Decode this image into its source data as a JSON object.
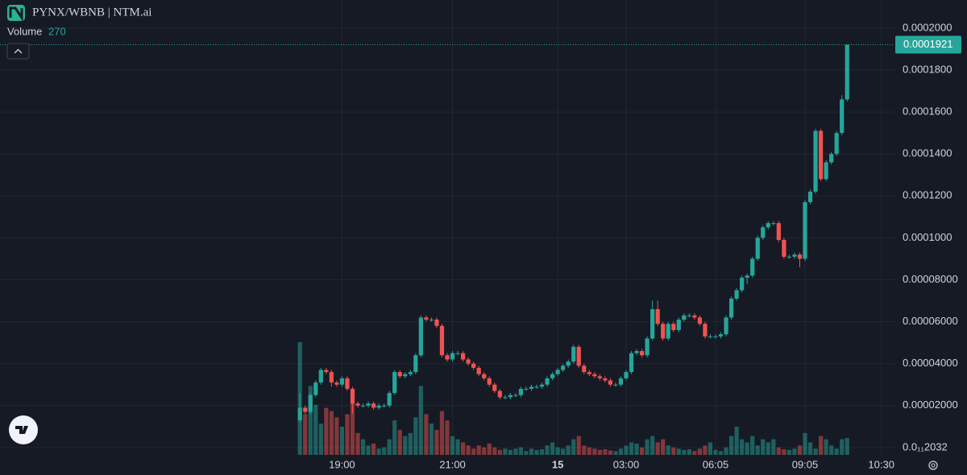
{
  "header": {
    "title": "PYNX/WBNB | NTM.ai",
    "volume_label": "Volume"
  },
  "chart_data": {
    "type": "candlestick",
    "series": [
      {
        "name": "PYNX/WBNB",
        "up_color": "#26a69a",
        "down_color": "#ef5350",
        "open": [
          1.3e-05,
          1.9e-05,
          1.7e-05,
          2.5e-05,
          3.1e-05,
          3.7e-05,
          3.6e-05,
          3.1e-05,
          3e-05,
          3.3e-05,
          2.8e-05,
          2.1e-05,
          2e-05,
          2e-05,
          2.1e-05,
          1.9e-05,
          2e-05,
          2e-05,
          2.6e-05,
          3.6e-05,
          3.4e-05,
          3.5e-05,
          3.6e-05,
          4.4e-05,
          6.2e-05,
          6.1e-05,
          6.1e-05,
          5.8e-05,
          4.4e-05,
          4.2e-05,
          4.5e-05,
          4.5e-05,
          4.2e-05,
          4e-05,
          3.8e-05,
          3.5e-05,
          3.3e-05,
          3e-05,
          2.7e-05,
          2.4e-05,
          2.4e-05,
          2.5e-05,
          2.5e-05,
          2.8e-05,
          2.8e-05,
          2.9e-05,
          2.9e-05,
          3e-05,
          3.3e-05,
          3.5e-05,
          3.7e-05,
          3.9e-05,
          4.1e-05,
          4.8e-05,
          3.9e-05,
          3.6e-05,
          3.5e-05,
          3.4e-05,
          3.3e-05,
          3.2e-05,
          3e-05,
          3e-05,
          3.3e-05,
          3.6e-05,
          4.5e-05,
          4.6e-05,
          4.4e-05,
          5.2e-05,
          6.6e-05,
          5.9e-05,
          5.2e-05,
          5.9e-05,
          5.6e-05,
          6.1e-05,
          6.3e-05,
          6.3e-05,
          6.2e-05,
          5.9e-05,
          5.3e-05,
          5.3e-05,
          5.3e-05,
          5.4e-05,
          6.2e-05,
          7.1e-05,
          7.5e-05,
          8.1e-05,
          8.2e-05,
          9e-05,
          0.0001,
          0.000105,
          0.000107,
          0.000107,
          9.9e-05,
          9.1e-05,
          9.1e-05,
          9.2e-05,
          9e-05,
          0.000117,
          0.000122,
          0.000151,
          0.000128,
          0.000136,
          0.00014,
          0.00015,
          0.000166
        ],
        "high": [
          2.6e-05,
          2e-05,
          2.6e-05,
          3.2e-05,
          3.8e-05,
          3.8e-05,
          3.7e-05,
          3.2e-05,
          3.4e-05,
          3.4e-05,
          2.9e-05,
          2.2e-05,
          2.1e-05,
          2.2e-05,
          2.2e-05,
          2.1e-05,
          2.1e-05,
          2.7e-05,
          3.7e-05,
          3.7e-05,
          3.6e-05,
          3.7e-05,
          4.5e-05,
          6.3e-05,
          6.3e-05,
          6.2e-05,
          6.2e-05,
          5.9e-05,
          4.5e-05,
          4.6e-05,
          4.6e-05,
          4.6e-05,
          4.3e-05,
          4.1e-05,
          3.9e-05,
          3.6e-05,
          3.4e-05,
          3.1e-05,
          2.8e-05,
          2.5e-05,
          2.6e-05,
          2.6e-05,
          2.9e-05,
          2.9e-05,
          3e-05,
          3e-05,
          3.1e-05,
          3.4e-05,
          3.6e-05,
          3.8e-05,
          4e-05,
          4.2e-05,
          4.9e-05,
          4.9e-05,
          4e-05,
          3.7e-05,
          3.6e-05,
          3.5e-05,
          3.4e-05,
          3.3e-05,
          3.1e-05,
          3.4e-05,
          3.7e-05,
          4.6e-05,
          4.7e-05,
          4.7e-05,
          5.3e-05,
          7e-05,
          7e-05,
          6e-05,
          6e-05,
          6e-05,
          6.2e-05,
          6.4e-05,
          6.4e-05,
          6.4e-05,
          6.3e-05,
          6e-05,
          5.4e-05,
          5.4e-05,
          5.5e-05,
          6.3e-05,
          7.2e-05,
          7.6e-05,
          8.2e-05,
          8.3e-05,
          9.1e-05,
          0.000101,
          0.000106,
          0.000108,
          0.000108,
          0.000108,
          0.0001,
          9.2e-05,
          9.3e-05,
          9.3e-05,
          0.000118,
          0.000123,
          0.000152,
          0.000152,
          0.000137,
          0.000141,
          0.000151,
          0.000168,
          0.0001921
        ],
        "low": [
          1.2e-05,
          1.6e-05,
          1.6e-05,
          2.4e-05,
          3e-05,
          3.5e-05,
          2.9e-05,
          2.9e-05,
          2.9e-05,
          2.7e-05,
          1.6e-05,
          1.9e-05,
          1.9e-05,
          1.9e-05,
          1.8e-05,
          1.8e-05,
          1.9e-05,
          1.9e-05,
          2.5e-05,
          3.3e-05,
          3.3e-05,
          3.4e-05,
          3.5e-05,
          4.3e-05,
          6e-05,
          6e-05,
          5.7e-05,
          4.3e-05,
          4.1e-05,
          4.1e-05,
          4.4e-05,
          4.1e-05,
          3.9e-05,
          3.7e-05,
          3.4e-05,
          3.2e-05,
          2.9e-05,
          2.6e-05,
          2.3e-05,
          2.3e-05,
          2.3e-05,
          2.4e-05,
          2.4e-05,
          2.7e-05,
          2.7e-05,
          2.8e-05,
          2.8e-05,
          2.9e-05,
          3.2e-05,
          3.4e-05,
          3.6e-05,
          3.8e-05,
          4e-05,
          3.8e-05,
          3.5e-05,
          3.4e-05,
          3.3e-05,
          3.2e-05,
          3.1e-05,
          2.9e-05,
          2.9e-05,
          2.9e-05,
          3.2e-05,
          3.5e-05,
          4.4e-05,
          4.3e-05,
          4.3e-05,
          5.1e-05,
          5.8e-05,
          5.1e-05,
          5.1e-05,
          5.5e-05,
          5.5e-05,
          6e-05,
          6.2e-05,
          6.1e-05,
          5.8e-05,
          5.2e-05,
          5.2e-05,
          5.2e-05,
          5.2e-05,
          5.3e-05,
          6.1e-05,
          7e-05,
          7.4e-05,
          7.8e-05,
          8.1e-05,
          8.9e-05,
          9.9e-05,
          0.000104,
          0.000106,
          9.8e-05,
          9e-05,
          9e-05,
          9e-05,
          8.6e-05,
          8.9e-05,
          0.000116,
          0.000121,
          0.000127,
          0.000127,
          0.000135,
          0.000139,
          0.000149,
          0.000165
        ],
        "close": [
          1.9e-05,
          1.7e-05,
          2.5e-05,
          3.1e-05,
          3.7e-05,
          3.6e-05,
          3.1e-05,
          3e-05,
          3.3e-05,
          2.8e-05,
          2.1e-05,
          2e-05,
          2e-05,
          2.1e-05,
          1.9e-05,
          2e-05,
          2e-05,
          2.6e-05,
          3.6e-05,
          3.4e-05,
          3.5e-05,
          3.6e-05,
          4.4e-05,
          6.2e-05,
          6.1e-05,
          6.1e-05,
          5.8e-05,
          4.4e-05,
          4.2e-05,
          4.5e-05,
          4.5e-05,
          4.2e-05,
          4e-05,
          3.8e-05,
          3.5e-05,
          3.3e-05,
          3e-05,
          2.7e-05,
          2.4e-05,
          2.4e-05,
          2.5e-05,
          2.5e-05,
          2.8e-05,
          2.8e-05,
          2.9e-05,
          2.9e-05,
          3e-05,
          3.3e-05,
          3.5e-05,
          3.7e-05,
          3.9e-05,
          4.1e-05,
          4.8e-05,
          3.9e-05,
          3.6e-05,
          3.5e-05,
          3.4e-05,
          3.3e-05,
          3.2e-05,
          3e-05,
          3e-05,
          3.3e-05,
          3.6e-05,
          4.5e-05,
          4.6e-05,
          4.4e-05,
          5.2e-05,
          6.6e-05,
          5.9e-05,
          5.2e-05,
          5.9e-05,
          5.6e-05,
          6.1e-05,
          6.3e-05,
          6.3e-05,
          6.2e-05,
          5.9e-05,
          5.3e-05,
          5.3e-05,
          5.3e-05,
          5.4e-05,
          6.2e-05,
          7.1e-05,
          7.5e-05,
          8.1e-05,
          8.2e-05,
          9e-05,
          0.0001,
          0.000105,
          0.000107,
          0.000107,
          9.9e-05,
          9.1e-05,
          9.1e-05,
          9.2e-05,
          9e-05,
          0.000117,
          0.000122,
          0.000151,
          0.000128,
          0.000136,
          0.00014,
          0.00015,
          0.000166,
          0.0001921
        ],
        "volume": [
          1800,
          650,
          1100,
          800,
          500,
          750,
          700,
          600,
          450,
          650,
          900,
          350,
          250,
          150,
          180,
          100,
          120,
          250,
          550,
          400,
          300,
          350,
          600,
          1100,
          650,
          500,
          400,
          700,
          550,
          300,
          250,
          200,
          150,
          100,
          150,
          120,
          180,
          120,
          80,
          100,
          80,
          100,
          120,
          60,
          100,
          80,
          90,
          150,
          200,
          120,
          100,
          150,
          250,
          300,
          150,
          120,
          100,
          80,
          90,
          70,
          60,
          100,
          150,
          200,
          180,
          120,
          250,
          300,
          200,
          250,
          150,
          120,
          100,
          80,
          90,
          60,
          100,
          150,
          200,
          80,
          60,
          120,
          300,
          450,
          250,
          200,
          300,
          150,
          250,
          200,
          250,
          120,
          90,
          80,
          100,
          150,
          350,
          200,
          100,
          300,
          250,
          150,
          100,
          250,
          270
        ]
      }
    ],
    "ylim": [
      -3.5e-06,
      0.0002134
    ],
    "yticks": [
      {
        "value": 0.0002,
        "label": "0.0002000"
      },
      {
        "value": 0.00018,
        "label": "0.0001800"
      },
      {
        "value": 0.00016,
        "label": "0.0001600"
      },
      {
        "value": 0.00014,
        "label": "0.0001400"
      },
      {
        "value": 0.00012,
        "label": "0.0001200"
      },
      {
        "value": 0.0001,
        "label": "0.0001000"
      },
      {
        "value": 8e-05,
        "label": "0.00008000"
      },
      {
        "value": 6e-05,
        "label": "0.00006000"
      },
      {
        "value": 4e-05,
        "label": "0.00004000"
      },
      {
        "value": 2e-05,
        "label": "0.00002000"
      },
      {
        "value": 2.032e-13,
        "label": "0.0₁₁2032"
      }
    ],
    "xlim": [
      -57,
      113
    ],
    "xticks": [
      {
        "value": 8,
        "label": "19:00"
      },
      {
        "value": 29,
        "label": "21:00"
      },
      {
        "value": 49,
        "label": "15"
      },
      {
        "value": 62,
        "label": "03:00"
      },
      {
        "value": 79,
        "label": "06:05"
      },
      {
        "value": 96,
        "label": "09:05"
      },
      {
        "value": 110.5,
        "label": "10:30"
      }
    ],
    "grid": true
  }
}
